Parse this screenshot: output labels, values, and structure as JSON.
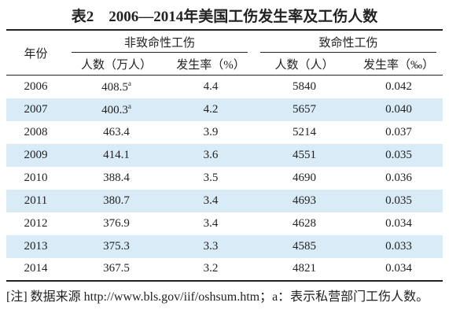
{
  "table": {
    "title": "表2　2006—2014年美国工伤发生率及工伤人数",
    "header": {
      "year": "年份",
      "groups": [
        "非致命性工伤",
        "致命性工伤"
      ],
      "columns": [
        "人数（万人）",
        "发生率（%）",
        "人数（人）",
        "发生率（‰）"
      ]
    },
    "rows": [
      [
        "2006",
        {
          "text": "408.5",
          "sup": "a"
        },
        "4.4",
        "5840",
        "0.042"
      ],
      [
        "2007",
        {
          "text": "400.3",
          "sup": "a"
        },
        "4.2",
        "5657",
        "0.040"
      ],
      [
        "2008",
        "463.4",
        "3.9",
        "5214",
        "0.037"
      ],
      [
        "2009",
        "414.1",
        "3.6",
        "4551",
        "0.035"
      ],
      [
        "2010",
        "388.4",
        "3.5",
        "4690",
        "0.036"
      ],
      [
        "2011",
        "380.7",
        "3.4",
        "4693",
        "0.035"
      ],
      [
        "2012",
        "376.9",
        "3.4",
        "4628",
        "0.034"
      ],
      [
        "2013",
        "375.3",
        "3.3",
        "4585",
        "0.033"
      ],
      [
        "2014",
        "367.5",
        "3.2",
        "4821",
        "0.034"
      ]
    ],
    "note": "[注] 数据来源 http://www.bls.gov/iif/oshsum.htm；a：表示私营部门工伤人数。"
  }
}
